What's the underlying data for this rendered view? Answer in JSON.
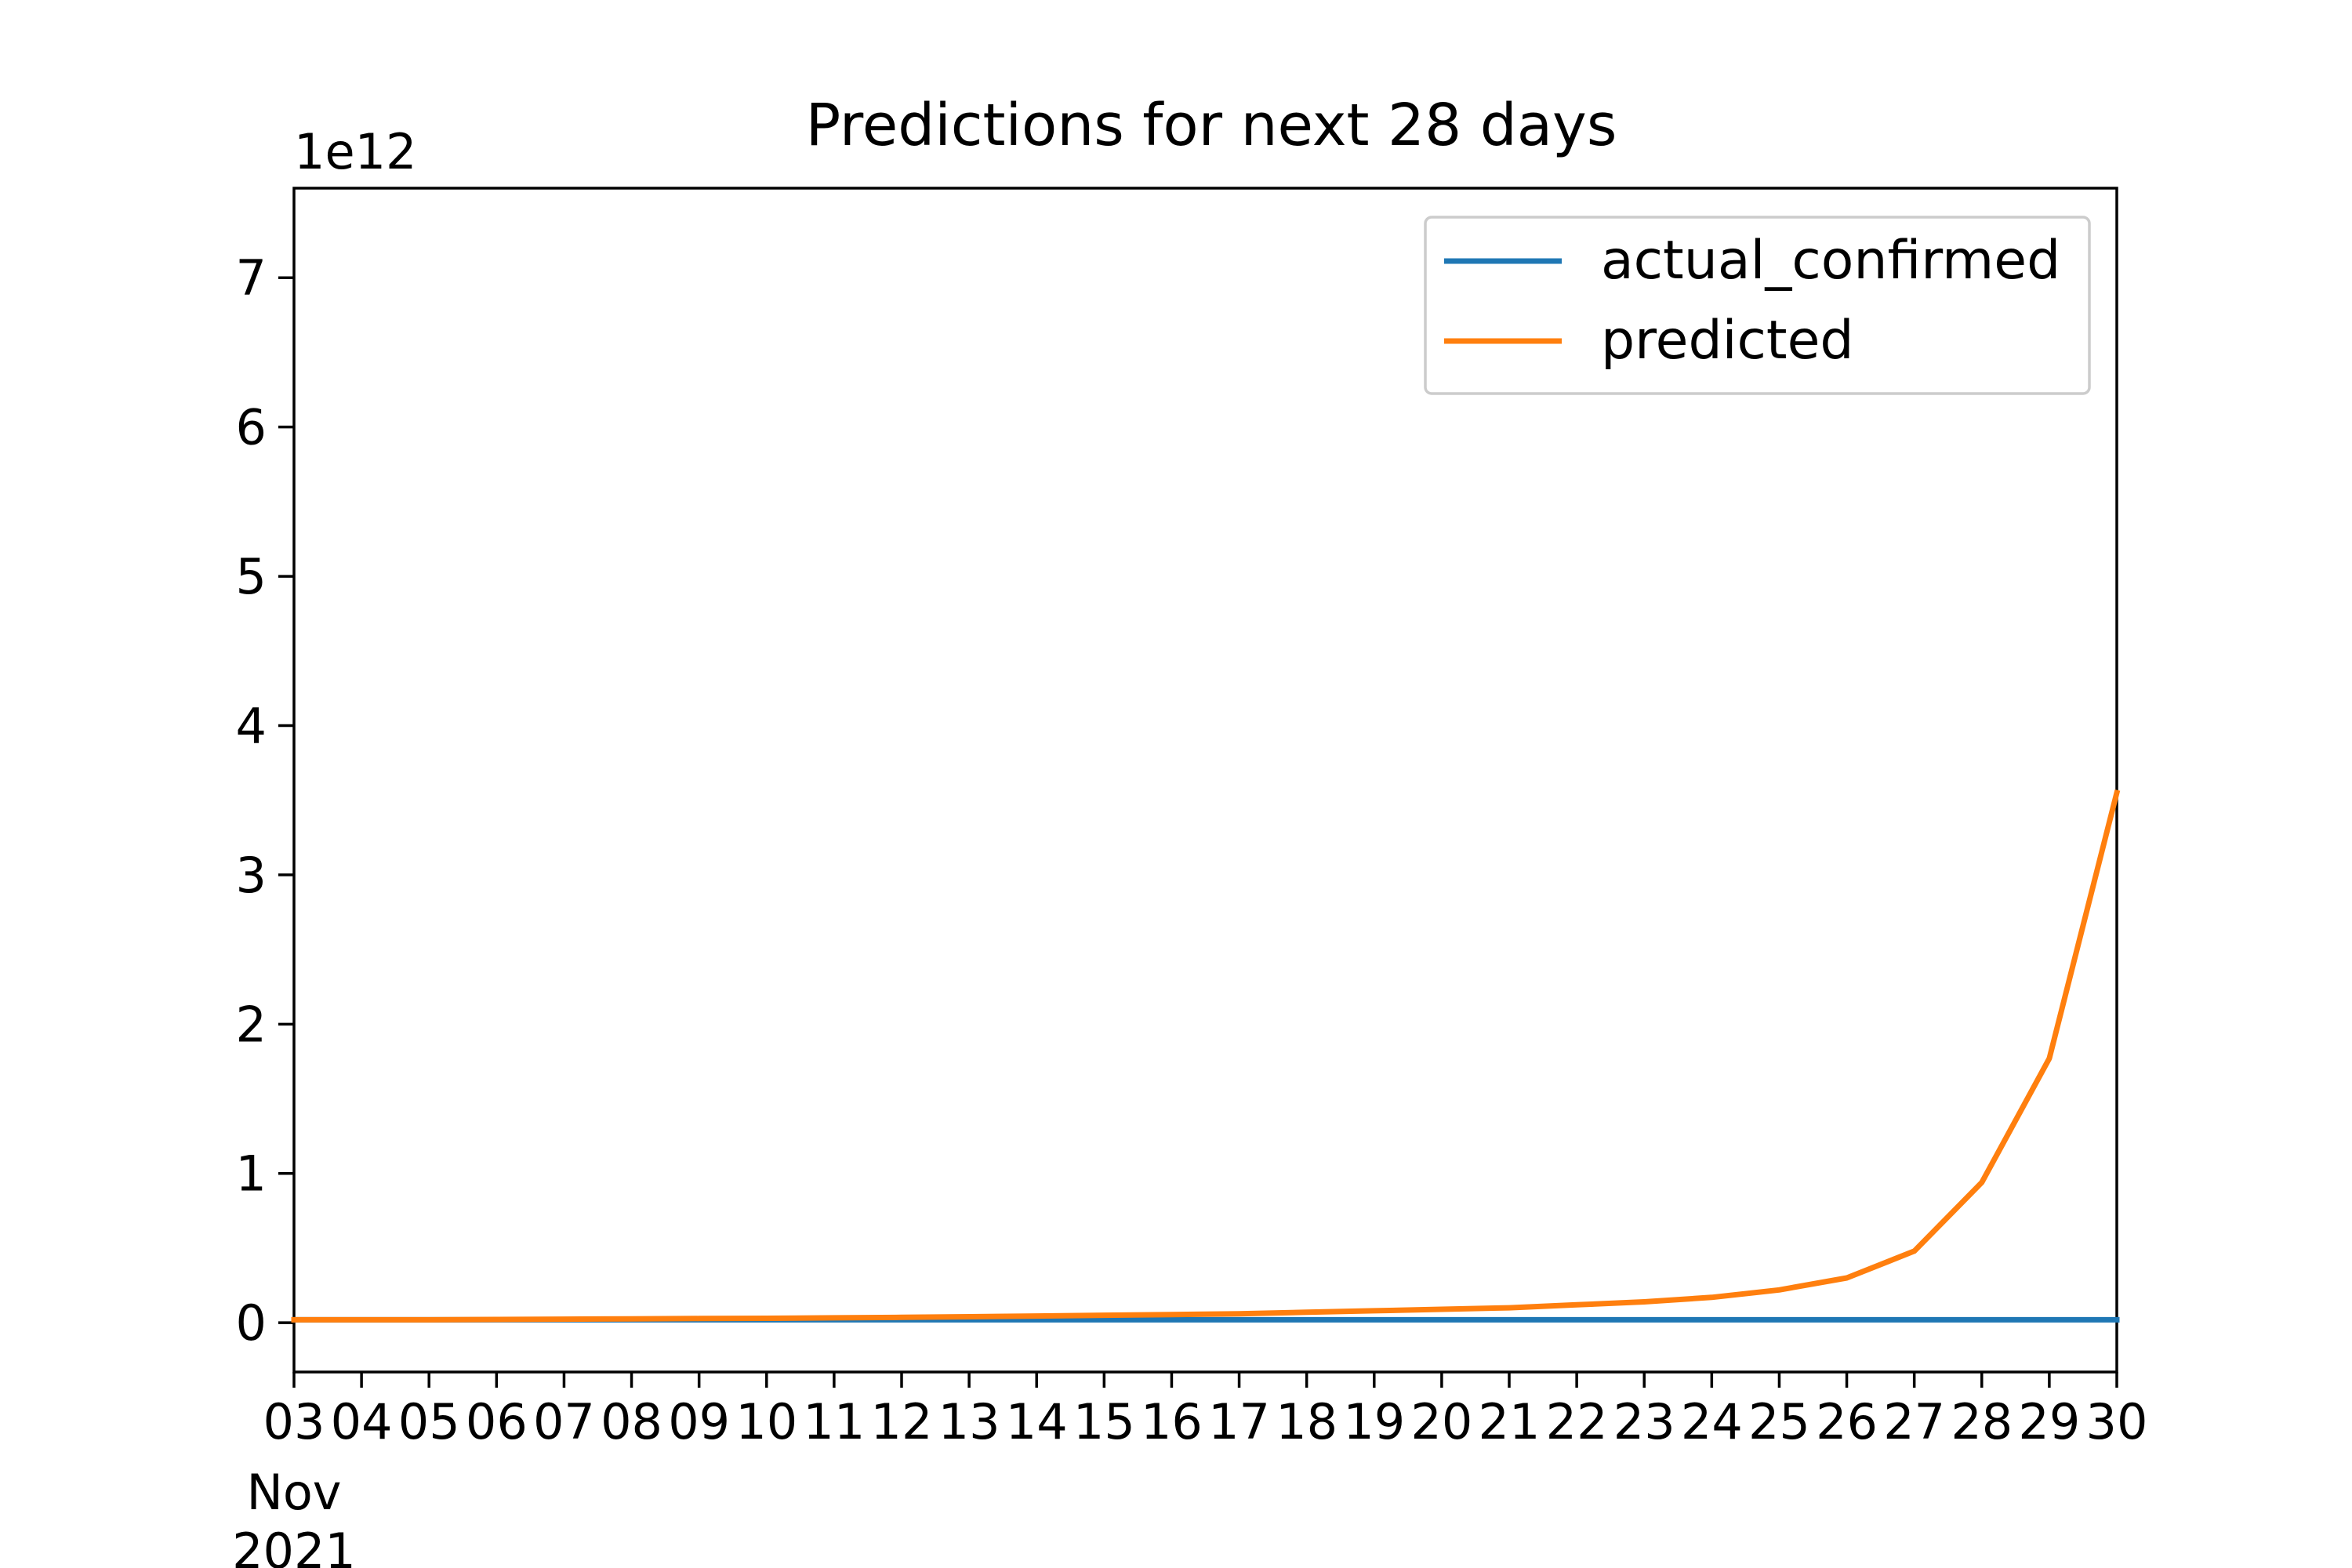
{
  "chart_data": {
    "type": "line",
    "title": "Predictions for next 28 days",
    "xlabel": "",
    "ylabel": "",
    "y_offset_label": "1e12",
    "x": [
      "2021-11-03",
      "2021-11-04",
      "2021-11-05",
      "2021-11-06",
      "2021-11-07",
      "2021-11-08",
      "2021-11-09",
      "2021-11-10",
      "2021-11-11",
      "2021-11-12",
      "2021-11-13",
      "2021-11-14",
      "2021-11-15",
      "2021-11-16",
      "2021-11-17",
      "2021-11-18",
      "2021-11-19",
      "2021-11-20",
      "2021-11-21",
      "2021-11-22",
      "2021-11-23",
      "2021-11-24",
      "2021-11-25",
      "2021-11-26",
      "2021-11-27",
      "2021-11-28",
      "2021-11-29",
      "2021-11-30"
    ],
    "x_tick_labels": [
      "03",
      "04",
      "05",
      "06",
      "07",
      "08",
      "09",
      "10",
      "11",
      "12",
      "13",
      "14",
      "15",
      "16",
      "17",
      "18",
      "19",
      "20",
      "21",
      "22",
      "23",
      "24",
      "25",
      "26",
      "27",
      "28",
      "29",
      "30"
    ],
    "x_month_label": "Nov",
    "x_year_label": "2021",
    "y_tick_labels": [
      "0",
      "1",
      "2",
      "3",
      "4",
      "5",
      "6",
      "7"
    ],
    "y_ticks": [
      0,
      1,
      2,
      3,
      4,
      5,
      6,
      7
    ],
    "ylim": [
      -0.33,
      7.6
    ],
    "grid": false,
    "legend_position": "top-right",
    "series": [
      {
        "name": "actual_confirmed",
        "color": "#1f77b4",
        "values": [
          0.02,
          0.02,
          0.02,
          0.02,
          0.02,
          0.02,
          0.02,
          0.02,
          0.02,
          0.02,
          0.02,
          0.02,
          0.02,
          0.02,
          0.02,
          0.02,
          0.02,
          0.02,
          0.02,
          0.02,
          0.02,
          0.02,
          0.02,
          0.02,
          0.02,
          0.02,
          0.02,
          0.02
        ]
      },
      {
        "name": "predicted",
        "color": "#ff7f0e",
        "values": [
          0.02,
          0.02,
          0.02,
          0.022,
          0.024,
          0.026,
          0.028,
          0.03,
          0.033,
          0.036,
          0.04,
          0.045,
          0.05,
          0.055,
          0.06,
          0.07,
          0.08,
          0.09,
          0.1,
          0.12,
          0.14,
          0.17,
          0.22,
          0.3,
          0.48,
          0.94,
          1.77,
          3.55
        ]
      }
    ]
  }
}
